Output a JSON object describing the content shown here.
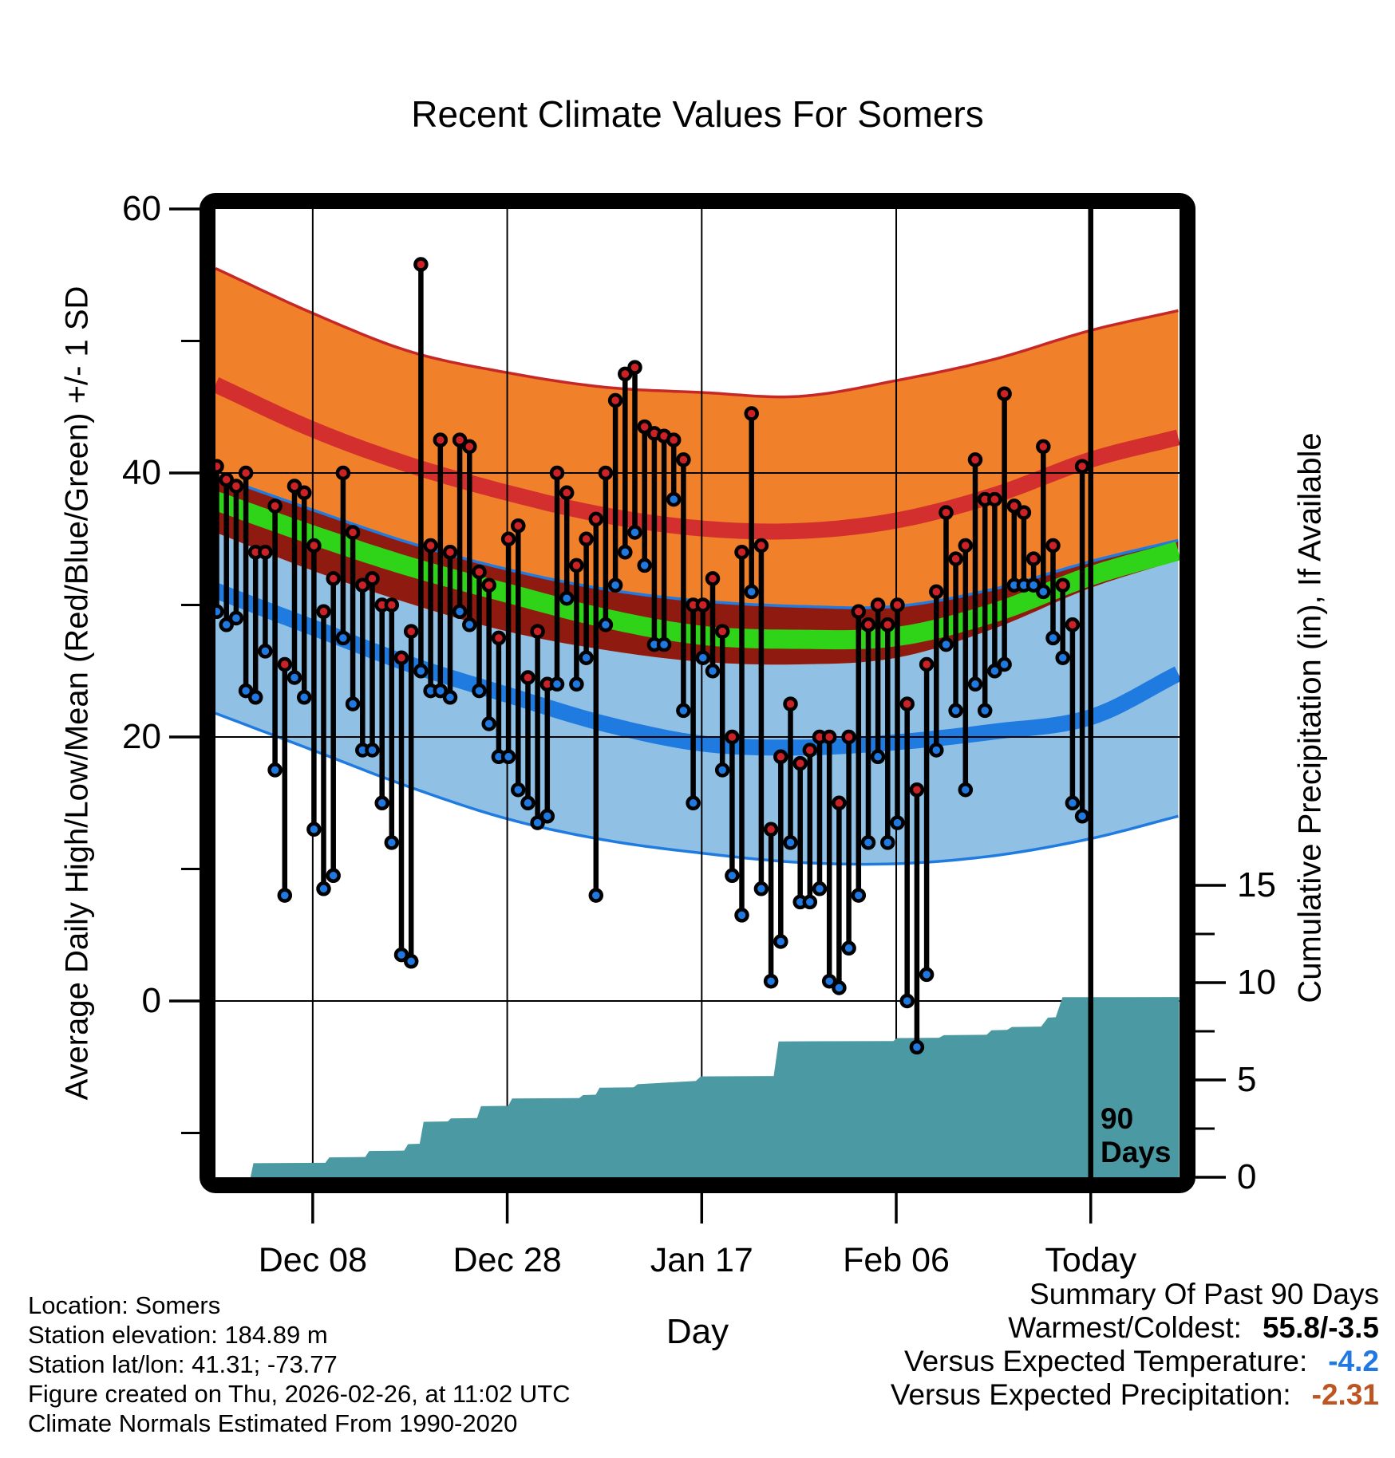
{
  "title": "Recent Climate Values For Somers",
  "chart_data": {
    "type": "line",
    "subtype": "climate-normals-bands-with-daily-stems-and-cumulative-precip",
    "title": "Recent Climate Values For Somers",
    "xlabel": "Day",
    "ylabel_left": "Average Daily High/Low/Mean (Red/Blue/Green) +/- 1 SD",
    "ylabel_right": "Cumulative Precipitation (in), If Available",
    "grid": "on",
    "temp_axis": {
      "major_ticks": [
        60,
        40,
        20,
        0
      ],
      "minor_ticks": [
        50,
        30,
        10,
        -10
      ],
      "range": [
        -13.4,
        60
      ]
    },
    "precip_axis": {
      "major_ticks": [
        15,
        10,
        5,
        0
      ],
      "minor_ticks": [
        12.5,
        7.5,
        2.5
      ],
      "range": [
        0,
        18
      ]
    },
    "x_ticks": [
      {
        "label": "Dec 08",
        "day": 10
      },
      {
        "label": "Dec 28",
        "day": 30
      },
      {
        "label": "Jan 17",
        "day": 50
      },
      {
        "label": "Feb 06",
        "day": 70
      },
      {
        "label": "Today",
        "day": 90
      }
    ],
    "x_range_days": [
      0,
      99.1
    ],
    "today_day": 90,
    "colors": {
      "orange_band": "#F0802A",
      "crimson_line": "#D32F2F",
      "maroon_overlap": "#8F1B10",
      "green_mean": "#2FD318",
      "light_blue_band": "#90C0E4",
      "blue_line": "#1F7BE0",
      "red_dot": "#CC2127",
      "blue_dot": "#2079E0",
      "teal_precip": "#4A99A3",
      "stem": "#000000"
    },
    "normals_days": [
      0,
      10,
      20,
      30,
      40,
      50,
      60,
      70,
      80,
      90,
      99
    ],
    "normals": {
      "high_plus_sd": [
        55.5,
        52.1,
        49.2,
        47.6,
        46.5,
        46.1,
        45.8,
        47.0,
        48.6,
        50.8,
        52.3
      ],
      "high": [
        46.7,
        43.3,
        40.6,
        38.5,
        36.8,
        35.8,
        35.6,
        36.4,
        38.3,
        41.0,
        42.7
      ],
      "high_minus_sd": [
        35.5,
        32.6,
        30.1,
        28.0,
        26.6,
        25.7,
        25.5,
        26.0,
        28.2,
        31.3,
        33.4
      ],
      "low_plus_sd": [
        39.8,
        37.2,
        34.7,
        32.7,
        31.2,
        30.3,
        29.9,
        29.9,
        31.2,
        33.3,
        34.9
      ],
      "mean": [
        37.9,
        35.3,
        32.9,
        30.9,
        29.0,
        27.7,
        27.4,
        27.6,
        29.4,
        32.2,
        34.1
      ],
      "low": [
        31.1,
        28.3,
        25.5,
        23.2,
        21.0,
        19.5,
        19.2,
        19.6,
        20.4,
        21.5,
        24.8
      ],
      "low_minus_sd": [
        21.8,
        19.0,
        16.2,
        13.8,
        12.2,
        11.2,
        10.5,
        10.4,
        11.0,
        12.3,
        14.0
      ]
    },
    "daily": {
      "start_day": 0,
      "highs": [
        40.5,
        39.5,
        39,
        40,
        34,
        34,
        37.5,
        25.5,
        39,
        38.5,
        34.5,
        29.5,
        32,
        40,
        35.5,
        31.5,
        32,
        30,
        30,
        26,
        28,
        55.8,
        34.5,
        42.5,
        34,
        42.5,
        42,
        32.5,
        31.5,
        27.5,
        35,
        36,
        24.5,
        28,
        24,
        40,
        38.5,
        33,
        35,
        36.5,
        40,
        45.5,
        47.5,
        48,
        43.5,
        43,
        42.8,
        42.5,
        41,
        30,
        30,
        32,
        28,
        20,
        34,
        44.5,
        34.5,
        13,
        18.5,
        22.5,
        18,
        19,
        20,
        20,
        15,
        20,
        29.5,
        28.5,
        30,
        28.5,
        30,
        22.5,
        16,
        25.5,
        31,
        37,
        33.5,
        34.5,
        41,
        38,
        38,
        46,
        37.5,
        37,
        33.5,
        42,
        34.5,
        31.5,
        28.5,
        40.5
      ],
      "lows": [
        29.5,
        28.5,
        29,
        23.5,
        23,
        26.5,
        17.5,
        8,
        24.5,
        23,
        13,
        8.5,
        9.5,
        27.5,
        22.5,
        19,
        19,
        15,
        12,
        3.5,
        3,
        25,
        23.5,
        23.5,
        23,
        29.5,
        28.5,
        23.5,
        21,
        18.5,
        18.5,
        16,
        15,
        13.5,
        14,
        24,
        30.5,
        24,
        26,
        8,
        28.5,
        31.5,
        34,
        35.5,
        33,
        27,
        27,
        38,
        22,
        15,
        26,
        25,
        17.5,
        9.5,
        6.5,
        31,
        8.5,
        1.5,
        4.5,
        12,
        7.5,
        7.5,
        8.5,
        1.5,
        1,
        4,
        8,
        12,
        18.5,
        12,
        13.5,
        0,
        -3.5,
        2,
        19,
        27,
        22,
        16,
        24,
        22,
        25,
        25.5,
        31.5,
        31.5,
        31.5,
        31,
        27.5,
        26,
        15,
        14
      ]
    },
    "precip_steps": [
      [
        0,
        0
      ],
      [
        3.6,
        0
      ],
      [
        3.9,
        0.72
      ],
      [
        11.3,
        0.74
      ],
      [
        11.7,
        1.02
      ],
      [
        15.4,
        1.04
      ],
      [
        15.8,
        1.35
      ],
      [
        19.4,
        1.37
      ],
      [
        19.8,
        1.7
      ],
      [
        21.0,
        1.72
      ],
      [
        21.4,
        2.85
      ],
      [
        23.9,
        2.87
      ],
      [
        24.2,
        3.02
      ],
      [
        26.9,
        3.04
      ],
      [
        27.3,
        3.65
      ],
      [
        30.1,
        3.67
      ],
      [
        30.5,
        4.05
      ],
      [
        37.4,
        4.07
      ],
      [
        37.8,
        4.22
      ],
      [
        39.1,
        4.24
      ],
      [
        39.5,
        4.6
      ],
      [
        43.0,
        4.62
      ],
      [
        43.4,
        4.78
      ],
      [
        49.4,
        4.95
      ],
      [
        49.9,
        5.18
      ],
      [
        57.4,
        5.2
      ],
      [
        57.9,
        6.98
      ],
      [
        69.7,
        7.0
      ],
      [
        70.1,
        7.15
      ],
      [
        74.4,
        7.17
      ],
      [
        74.9,
        7.3
      ],
      [
        79.3,
        7.32
      ],
      [
        79.8,
        7.55
      ],
      [
        81.4,
        7.57
      ],
      [
        81.9,
        7.72
      ],
      [
        84.9,
        7.74
      ],
      [
        85.6,
        8.2
      ],
      [
        86.4,
        8.22
      ],
      [
        87.1,
        9.25
      ],
      [
        99.1,
        9.26
      ]
    ]
  },
  "annotation_90days": {
    "line1": "90",
    "line2": "Days"
  },
  "footer_left": {
    "lines": [
      "Location: Somers",
      "Station elevation: 184.89 m",
      "Station lat/lon: 41.31; -73.77",
      "Figure created on Thu, 2026-02-26, at 11:02 UTC",
      "Climate Normals Estimated From 1990-2020"
    ]
  },
  "summary": {
    "header": "Summary Of Past 90 Days",
    "warmest_coldest_label": "Warmest/Coldest:",
    "warmest_coldest_value": "55.8/-3.5",
    "vs_temp_label": "Versus Expected Temperature:",
    "vs_temp_value": "-4.2",
    "vs_precip_label": "Versus Expected Precipitation:",
    "vs_precip_value": "-2.31"
  }
}
